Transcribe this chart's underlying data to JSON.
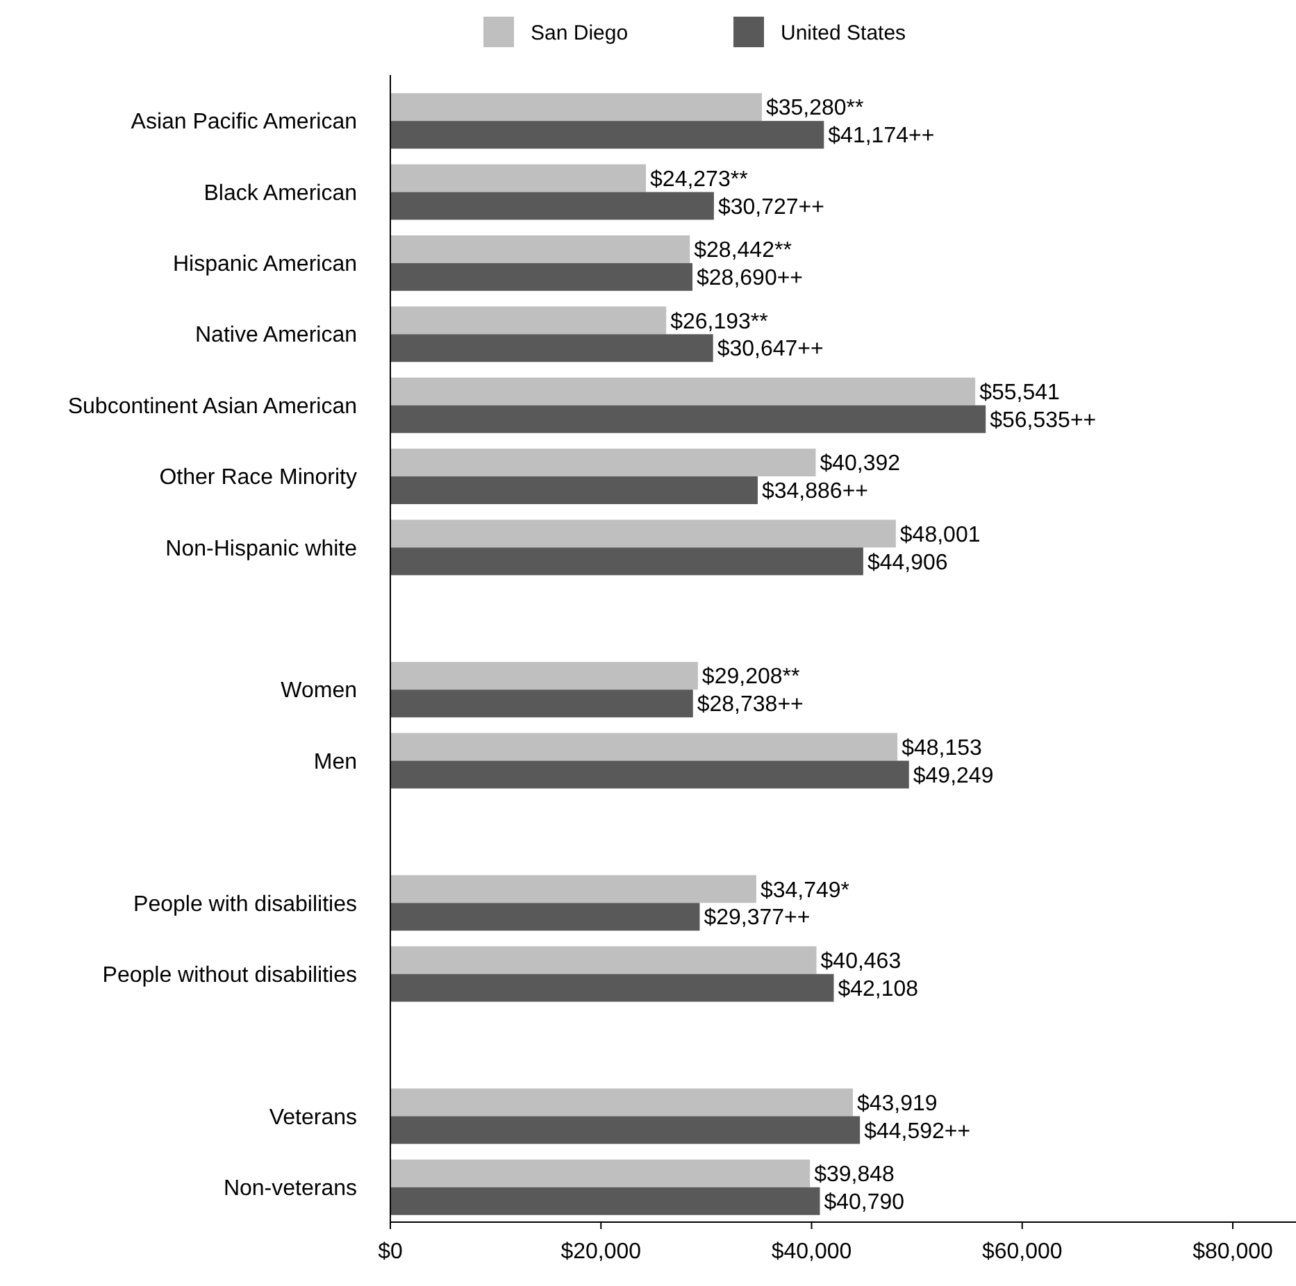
{
  "chart_data": {
    "type": "bar",
    "orientation": "horizontal",
    "categories": [
      "Asian Pacific American",
      "Black American",
      "Hispanic American",
      "Native American",
      "Subcontinent Asian American",
      "Other Race Minority",
      "Non-Hispanic white",
      null,
      "Women",
      "Men",
      null,
      "People with disabilities",
      "People without disabilities",
      null,
      "Veterans",
      "Non-veterans"
    ],
    "series": [
      {
        "name": "San Diego",
        "color": "#bfbfbf",
        "values": [
          35280,
          24273,
          28442,
          26193,
          55541,
          40392,
          48001,
          null,
          29208,
          48153,
          null,
          34749,
          40463,
          null,
          43919,
          39848
        ],
        "value_labels": [
          "$35,280**",
          "$24,273**",
          "$28,442**",
          "$26,193**",
          "$55,541",
          "$40,392",
          "$48,001",
          null,
          "$29,208**",
          "$48,153",
          null,
          "$34,749*",
          "$40,463",
          null,
          "$43,919",
          "$39,848"
        ]
      },
      {
        "name": "United States",
        "color": "#595959",
        "values": [
          41174,
          30727,
          28690,
          30647,
          56535,
          34886,
          44906,
          null,
          28738,
          49249,
          null,
          29377,
          42108,
          null,
          44592,
          40790
        ],
        "value_labels": [
          "$41,174++",
          "$30,727++",
          "$28,690++",
          "$30,647++",
          "$56,535++",
          "$34,886++",
          "$44,906",
          null,
          "$28,738++",
          "$49,249",
          null,
          "$29,377++",
          "$42,108",
          null,
          "$44,592++",
          "$40,790"
        ]
      }
    ],
    "xlim": [
      0,
      86000
    ],
    "xticks": [
      {
        "value": 0,
        "label": "$0"
      },
      {
        "value": 20000,
        "label": "$20,000"
      },
      {
        "value": 40000,
        "label": "$40,000"
      },
      {
        "value": 60000,
        "label": "$60,000"
      },
      {
        "value": 80000,
        "label": "$80,000"
      }
    ],
    "legend": "top",
    "grid": false
  }
}
